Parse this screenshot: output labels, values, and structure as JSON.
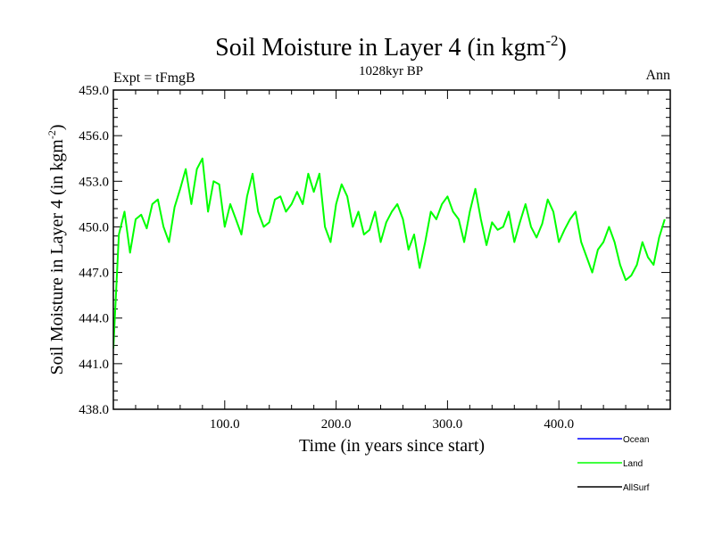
{
  "chart_data": {
    "type": "line",
    "title_main": "Soil Moisture in Layer 4 (in kgm",
    "title_sup": "-2",
    "title_close": ")",
    "subtitle": "1028kyr BP",
    "left_label": "Expt = tFmgB",
    "right_label": "Ann",
    "xlabel": "Time (in years since start)",
    "ylabel_main": "Soil Moisture in Layer 4 (in kgm",
    "ylabel_sup": "-2",
    "ylabel_close": ")",
    "xlim": [
      0,
      500
    ],
    "ylim": [
      438.0,
      459.0
    ],
    "x_ticks": [
      100,
      200,
      300,
      400
    ],
    "x_tick_labels": [
      "100.0",
      "200.0",
      "300.0",
      "400.0"
    ],
    "y_ticks": [
      438,
      441,
      444,
      447,
      450,
      453,
      456,
      459
    ],
    "y_tick_labels": [
      "438.0",
      "441.0",
      "444.0",
      "447.0",
      "450.0",
      "453.0",
      "456.0",
      "459.0"
    ],
    "legend": [
      {
        "name": "Ocean",
        "color": "#0000ff"
      },
      {
        "name": "Land",
        "color": "#00ff00"
      },
      {
        "name": "AllSurf",
        "color": "#000000"
      }
    ],
    "series": [
      {
        "name": "Land",
        "color": "#00ff00",
        "x_start": 0,
        "x_step": 5,
        "values": [
          442.0,
          449.5,
          451.0,
          448.3,
          450.5,
          450.8,
          449.9,
          451.5,
          451.8,
          450.0,
          449.0,
          451.3,
          452.5,
          453.8,
          451.5,
          453.8,
          454.5,
          451.0,
          453.0,
          452.8,
          450.0,
          451.5,
          450.5,
          449.5,
          452.0,
          453.5,
          451.0,
          450.0,
          450.3,
          451.8,
          452.0,
          451.0,
          451.5,
          452.3,
          451.5,
          453.5,
          452.3,
          453.5,
          450.0,
          449.0,
          451.5,
          452.8,
          452.0,
          450.0,
          451.0,
          449.5,
          449.8,
          451.0,
          449.0,
          450.3,
          451.0,
          451.5,
          450.5,
          448.5,
          449.5,
          447.3,
          449.0,
          451.0,
          450.5,
          451.5,
          452.0,
          451.0,
          450.5,
          449.0,
          451.0,
          452.5,
          450.5,
          448.8,
          450.3,
          449.8,
          450.0,
          451.0,
          449.0,
          450.3,
          451.5,
          450.0,
          449.3,
          450.2,
          451.8,
          451.0,
          449.0,
          449.8,
          450.5,
          451.0,
          449.0,
          448.0,
          447.0,
          448.5,
          449.0,
          450.0,
          449.0,
          447.5,
          446.5,
          446.8,
          447.5,
          449.0,
          448.0,
          447.5,
          449.3,
          450.5
        ]
      }
    ]
  }
}
